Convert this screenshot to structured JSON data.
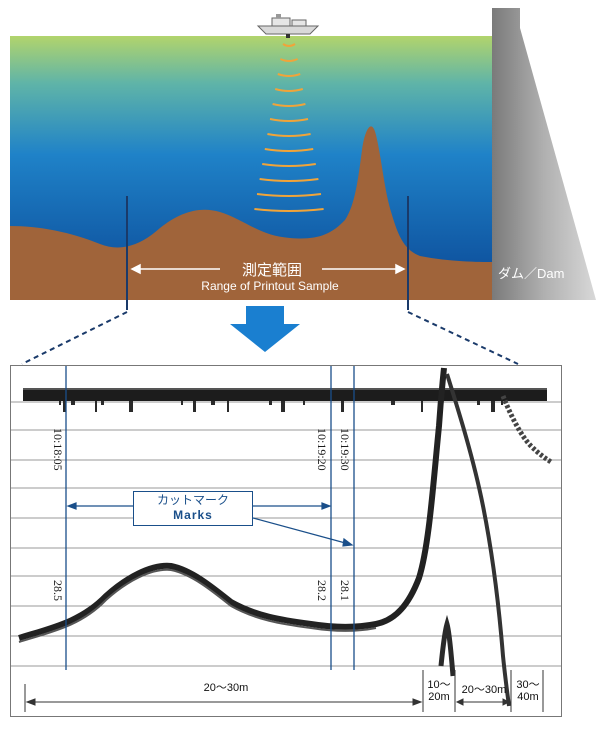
{
  "scene": {
    "dam_label": "ダム／Dam",
    "range_jp": "測定範囲",
    "range_en": "Range of Printout Sample"
  },
  "printout": {
    "marks": [
      {
        "time": "10:18:05",
        "depth": "28.5"
      },
      {
        "time": "10:19:20",
        "depth": "28.2"
      },
      {
        "time": "10:19:30",
        "depth": "28.1"
      }
    ],
    "marks_label_jp": "カットマーク",
    "marks_label_en": "Marks",
    "distances": [
      "20〜30m",
      "10〜\n20m",
      "20〜30m",
      "30〜\n40m"
    ]
  },
  "colors": {
    "water_top": "#a8cf6a",
    "water_deep": "#0b4d9a",
    "ground": "#a0643a",
    "dam": "#8a8a8a",
    "mark_line": "#1a4f8a",
    "arrow": "#1a7fd0",
    "sonar_wave": "#f0a43a"
  }
}
